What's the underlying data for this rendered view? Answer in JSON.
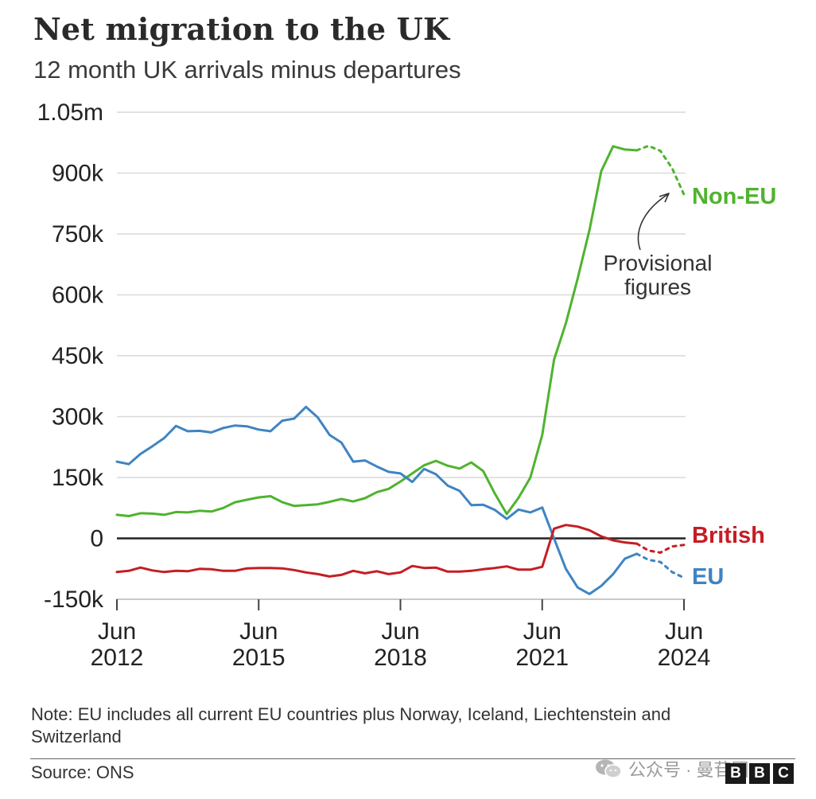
{
  "title": "Net migration to the UK",
  "subtitle": "12 month UK arrivals minus departures",
  "note": "Note: EU includes all current EU countries plus Norway, Iceland, Liechtenstein and Switzerland",
  "source": "Source: ONS",
  "watermark": "公众号 · 曼苷图",
  "logo": [
    "B",
    "B",
    "C"
  ],
  "colors": {
    "non_eu": "#4fb32e",
    "eu": "#3f84c2",
    "british": "#c41e24",
    "grid": "#d9d9d9",
    "zero": "#222222"
  },
  "chart_data": {
    "type": "line",
    "title": "Net migration to the UK",
    "subtitle": "12 month UK arrivals minus departures",
    "ylabel": "",
    "xlabel": "",
    "ylim": [
      -150000,
      1050000
    ],
    "xlim": [
      2012.42,
      2024.42
    ],
    "y_ticks": [
      -150000,
      0,
      150000,
      300000,
      450000,
      600000,
      750000,
      900000,
      1050000
    ],
    "y_tick_labels": [
      "-150k",
      "0",
      "150k",
      "300k",
      "450k",
      "600k",
      "750k",
      "900k",
      "1.05m"
    ],
    "x_ticks": [
      2012.42,
      2015.42,
      2018.42,
      2021.42,
      2024.42
    ],
    "x_tick_labels": [
      [
        "Jun",
        "2012"
      ],
      [
        "Jun",
        "2015"
      ],
      [
        "Jun",
        "2018"
      ],
      [
        "Jun",
        "2021"
      ],
      [
        "Jun",
        "2024"
      ]
    ],
    "annotation": {
      "text": [
        "Provisional",
        "figures"
      ],
      "points_to": "Non-EU provisional segment"
    },
    "series": [
      {
        "name": "Non-EU",
        "color": "#4fb32e",
        "x": [
          2012.42,
          2012.67,
          2012.92,
          2013.17,
          2013.42,
          2013.67,
          2013.92,
          2014.17,
          2014.42,
          2014.67,
          2014.92,
          2015.17,
          2015.42,
          2015.67,
          2015.92,
          2016.17,
          2016.42,
          2016.67,
          2016.92,
          2017.17,
          2017.42,
          2017.67,
          2017.92,
          2018.17,
          2018.42,
          2018.67,
          2018.92,
          2019.17,
          2019.42,
          2019.67,
          2019.92,
          2020.17,
          2020.42,
          2020.67,
          2020.92,
          2021.17,
          2021.42,
          2021.67,
          2021.92,
          2022.17,
          2022.42,
          2022.67,
          2022.92,
          2023.17,
          2023.42
        ],
        "y": [
          58000,
          55000,
          62000,
          61000,
          58000,
          65000,
          64000,
          68000,
          66000,
          75000,
          89000,
          95000,
          101000,
          104000,
          89000,
          80000,
          82000,
          84000,
          90000,
          97000,
          91000,
          99000,
          114000,
          122000,
          140000,
          160000,
          180000,
          191000,
          179000,
          172000,
          187000,
          166000,
          110000,
          60000,
          100000,
          150000,
          255000,
          440000,
          530000,
          640000,
          760000,
          905000,
          966000,
          958000,
          956000
        ],
        "provisional_x": [
          2023.42,
          2023.67,
          2023.92,
          2024.17,
          2024.42
        ],
        "provisional_y": [
          956000,
          967000,
          955000,
          912000,
          847000
        ]
      },
      {
        "name": "EU",
        "color": "#3f84c2",
        "x": [
          2012.42,
          2012.67,
          2012.92,
          2013.17,
          2013.42,
          2013.67,
          2013.92,
          2014.17,
          2014.42,
          2014.67,
          2014.92,
          2015.17,
          2015.42,
          2015.67,
          2015.92,
          2016.17,
          2016.42,
          2016.67,
          2016.92,
          2017.17,
          2017.42,
          2017.67,
          2017.92,
          2018.17,
          2018.42,
          2018.67,
          2018.92,
          2019.17,
          2019.42,
          2019.67,
          2019.92,
          2020.17,
          2020.42,
          2020.67,
          2020.92,
          2021.17,
          2021.42,
          2021.67,
          2021.92,
          2022.17,
          2022.42,
          2022.67,
          2022.92,
          2023.17,
          2023.42
        ],
        "y": [
          189000,
          183000,
          208000,
          227000,
          247000,
          277000,
          264000,
          265000,
          261000,
          272000,
          278000,
          276000,
          268000,
          264000,
          290000,
          295000,
          324000,
          298000,
          255000,
          236000,
          189000,
          192000,
          177000,
          164000,
          160000,
          139000,
          171000,
          158000,
          130000,
          117000,
          82000,
          83000,
          70000,
          48000,
          71000,
          64000,
          76000,
          0,
          -75000,
          -121000,
          -137000,
          -117000,
          -88000,
          -50000,
          -38000
        ],
        "provisional_x": [
          2023.42,
          2023.67,
          2023.92,
          2024.17,
          2024.42
        ],
        "provisional_y": [
          -38000,
          -53000,
          -58000,
          -83000,
          -97000
        ]
      },
      {
        "name": "British",
        "color": "#c41e24",
        "x": [
          2012.42,
          2012.67,
          2012.92,
          2013.17,
          2013.42,
          2013.67,
          2013.92,
          2014.17,
          2014.42,
          2014.67,
          2014.92,
          2015.17,
          2015.42,
          2015.67,
          2015.92,
          2016.17,
          2016.42,
          2016.67,
          2016.92,
          2017.17,
          2017.42,
          2017.67,
          2017.92,
          2018.17,
          2018.42,
          2018.67,
          2018.92,
          2019.17,
          2019.42,
          2019.67,
          2019.92,
          2020.17,
          2020.42,
          2020.67,
          2020.92,
          2021.17,
          2021.42,
          2021.67,
          2021.92,
          2022.17,
          2022.42,
          2022.67,
          2022.92,
          2023.17,
          2023.42
        ],
        "y": [
          -83000,
          -80000,
          -72000,
          -79000,
          -83000,
          -80000,
          -81000,
          -75000,
          -76000,
          -80000,
          -80000,
          -74000,
          -73000,
          -73000,
          -74000,
          -78000,
          -84000,
          -88000,
          -94000,
          -90000,
          -80000,
          -86000,
          -81000,
          -88000,
          -84000,
          -68000,
          -73000,
          -72000,
          -82000,
          -82000,
          -80000,
          -76000,
          -73000,
          -69000,
          -77000,
          -77000,
          -70000,
          24000,
          33000,
          29000,
          20000,
          5000,
          -5000,
          -10000,
          -13000
        ],
        "provisional_x": [
          2023.42,
          2023.67,
          2023.92,
          2024.17,
          2024.42
        ],
        "provisional_y": [
          -13000,
          -30000,
          -35000,
          -20000,
          -16000
        ]
      }
    ]
  }
}
